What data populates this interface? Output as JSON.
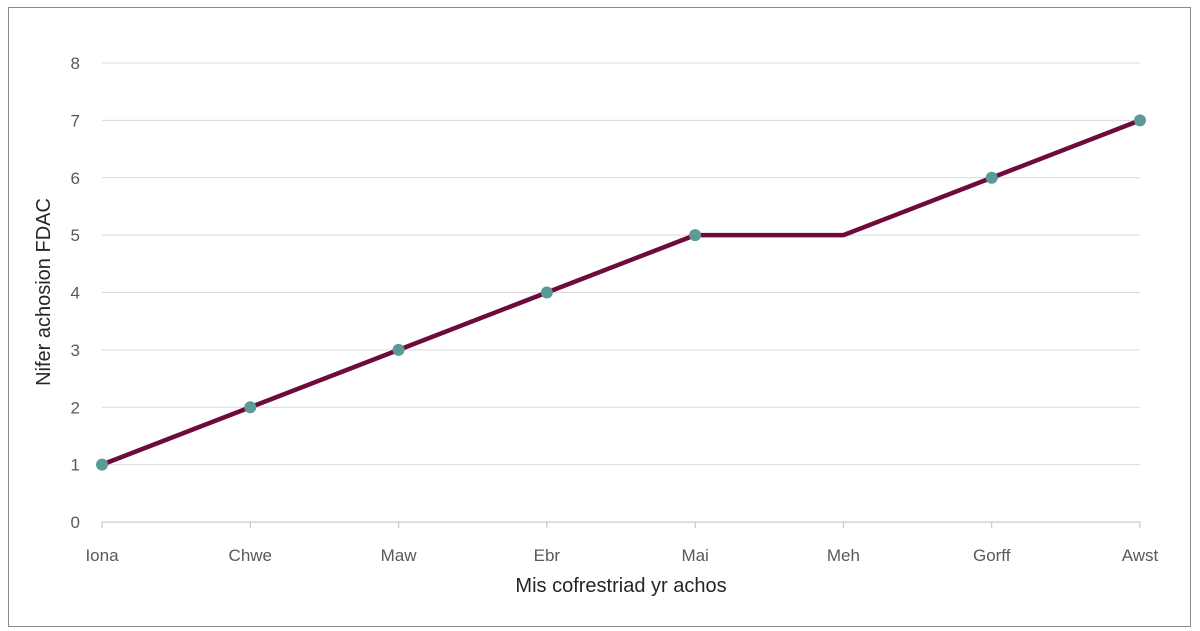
{
  "chart_data": {
    "type": "line",
    "categories": [
      "Iona",
      "Chwe",
      "Maw",
      "Ebr",
      "Mai",
      "Meh",
      "Gorff",
      "Awst"
    ],
    "series": [
      {
        "values": [
          1,
          2,
          3,
          4,
          5,
          5,
          6,
          7
        ],
        "markers": [
          true,
          true,
          true,
          true,
          true,
          false,
          true,
          true
        ]
      }
    ],
    "xlabel": "Mis cofrestriad yr achos",
    "ylabel": "Nifer achosion FDAC",
    "ylim": [
      0,
      8
    ],
    "yticks": [
      0,
      1,
      2,
      3,
      4,
      5,
      6,
      7,
      8
    ],
    "grid": true,
    "legend": "none",
    "colors": {
      "line": "#6e0a3c",
      "marker": "#5b9a97",
      "grid": "#d9d9d9",
      "axis": "#bfbfbf"
    }
  }
}
